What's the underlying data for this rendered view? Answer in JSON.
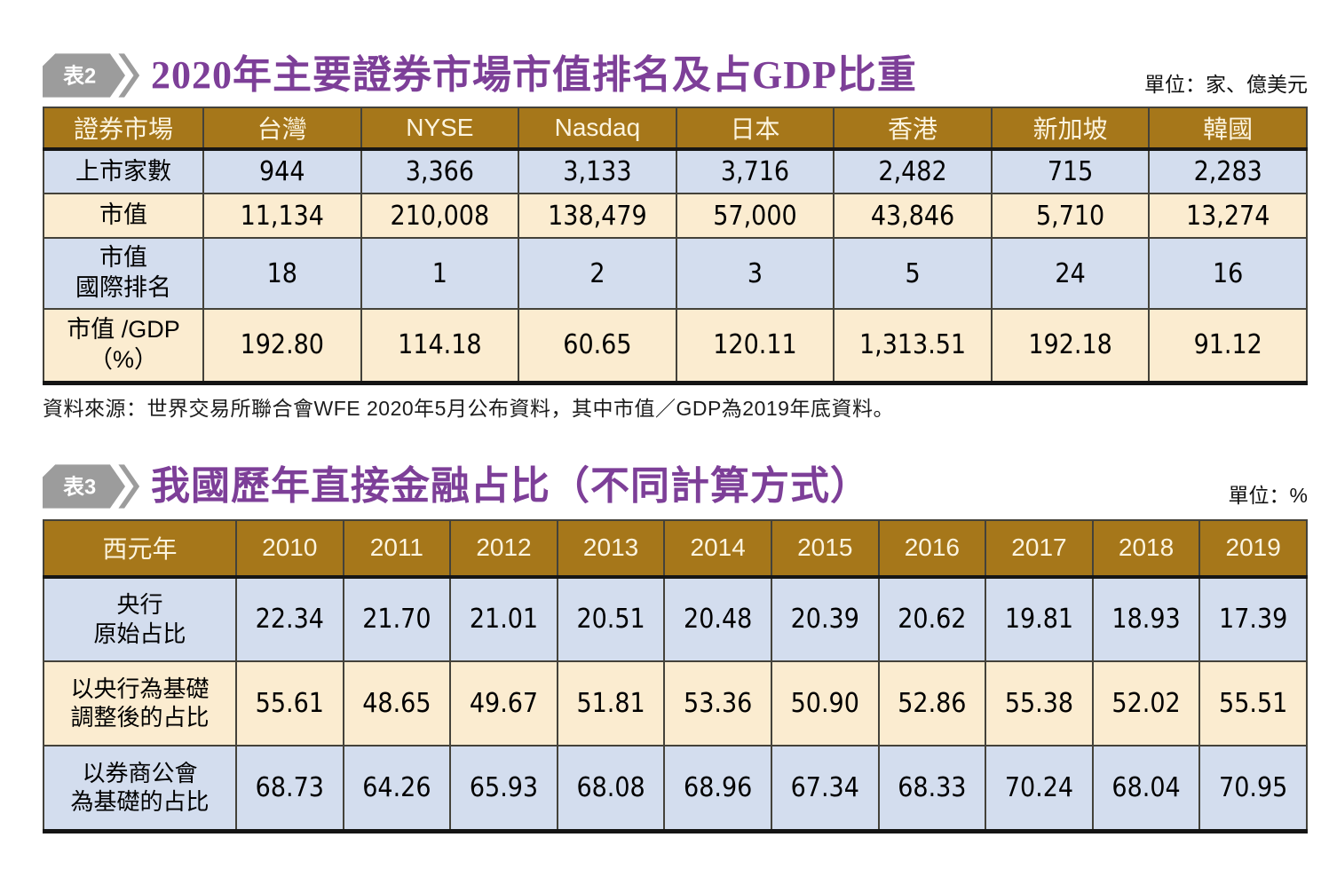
{
  "colors": {
    "header_brown": "#A6771A",
    "row_blue": "#D3DDEE",
    "row_cream": "#FBECD0",
    "title_purple": "#7D3F98",
    "badge_gray": "#9C9C9C",
    "border_dark": "#44423A"
  },
  "table2": {
    "badge_label": "表2",
    "title": "2020年主要證券市場市值排名及占GDP比重",
    "unit": "單位：家、億美元",
    "columns": [
      "證券市場",
      "台灣",
      "NYSE",
      "Nasdaq",
      "日本",
      "香港",
      "新加坡",
      "韓國"
    ],
    "rows": [
      {
        "label_lines": [
          "上市家數"
        ],
        "values": [
          "944",
          "3,366",
          "3,133",
          "3,716",
          "2,482",
          "715",
          "2,283"
        ]
      },
      {
        "label_lines": [
          "市值"
        ],
        "values": [
          "11,134",
          "210,008",
          "138,479",
          "57,000",
          "43,846",
          "5,710",
          "13,274"
        ]
      },
      {
        "label_lines": [
          "市值",
          "國際排名"
        ],
        "values": [
          "18",
          "1",
          "2",
          "3",
          "5",
          "24",
          "16"
        ]
      },
      {
        "label_lines": [
          "市值 /GDP",
          "（%）"
        ],
        "values": [
          "192.80",
          "114.18",
          "60.65",
          "120.11",
          "1,313.51",
          "192.18",
          "91.12"
        ]
      }
    ],
    "source": "資料來源：世界交易所聯合會WFE 2020年5月公布資料，其中市值／GDP為2019年底資料。"
  },
  "table3": {
    "badge_label": "表3",
    "title": "我國歷年直接金融占比（不同計算方式）",
    "unit": "單位：%",
    "columns": [
      "西元年",
      "2010",
      "2011",
      "2012",
      "2013",
      "2014",
      "2015",
      "2016",
      "2017",
      "2018",
      "2019"
    ],
    "rows": [
      {
        "label_lines": [
          "央行",
          "原始占比"
        ],
        "values": [
          "22.34",
          "21.70",
          "21.01",
          "20.51",
          "20.48",
          "20.39",
          "20.62",
          "19.81",
          "18.93",
          "17.39"
        ]
      },
      {
        "label_lines": [
          "以央行為基礎",
          "調整後的占比"
        ],
        "values": [
          "55.61",
          "48.65",
          "49.67",
          "51.81",
          "53.36",
          "50.90",
          "52.86",
          "55.38",
          "52.02",
          "55.51"
        ]
      },
      {
        "label_lines": [
          "以券商公會",
          "為基礎的占比"
        ],
        "values": [
          "68.73",
          "64.26",
          "65.93",
          "68.08",
          "68.96",
          "67.34",
          "68.33",
          "70.24",
          "68.04",
          "70.95"
        ]
      }
    ]
  }
}
